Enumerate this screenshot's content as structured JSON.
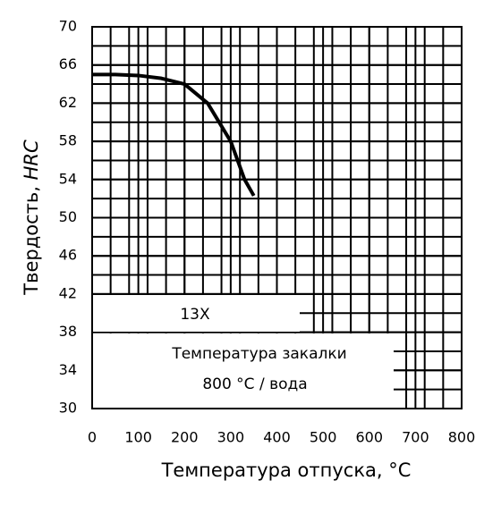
{
  "chart_data": {
    "type": "line",
    "ylabel": "Твердость,",
    "ylabel_unit": "HRC",
    "xlabel": "Температура отпуска, °C",
    "annotations": [
      "13X",
      "Температура закалки",
      "800 °C / вода"
    ],
    "x": [
      0,
      50,
      100,
      150,
      200,
      250,
      300,
      330,
      350
    ],
    "series": [
      {
        "name": "13X",
        "color": "#000000",
        "values": [
          65,
          65,
          64.9,
          64.6,
          64,
          62,
          58,
          54,
          52.3
        ]
      }
    ],
    "xlim": [
      0,
      800
    ],
    "xticks": [
      0,
      100,
      200,
      300,
      400,
      500,
      600,
      700,
      800
    ],
    "ylim": [
      30,
      70
    ],
    "yticks": [
      30,
      34,
      38,
      42,
      46,
      50,
      54,
      58,
      62,
      66,
      70
    ],
    "grid": true
  }
}
